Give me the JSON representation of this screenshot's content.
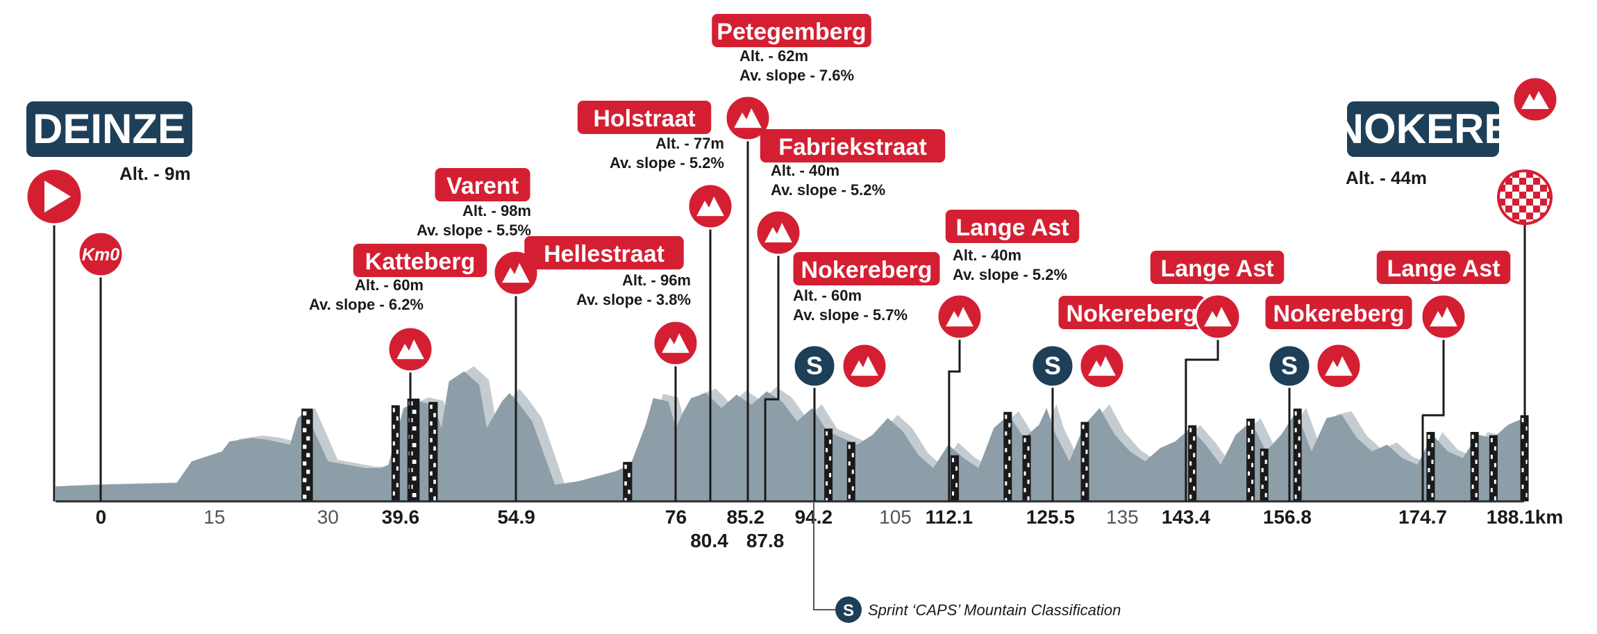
{
  "colors": {
    "red": "#d41f32",
    "navy": "#1e3f58",
    "profile_front": "#8d9ea8",
    "profile_back": "#c4ccd1",
    "text": "#1a1a1a",
    "tick_grey": "#555555"
  },
  "start": {
    "name": "DEINZE",
    "altitude": "Alt. - 9m",
    "icon": "start-flag-play-icon",
    "km0_label": "Km0"
  },
  "finish": {
    "name": "NOKERE",
    "altitude": "Alt. - 44m",
    "icon": "finish-checkered-flag-icon"
  },
  "climbs": [
    {
      "name": "Katteberg",
      "km": 39.6,
      "alt": "Alt. - 60m",
      "slope": "Av. slope - 6.2%"
    },
    {
      "name": "Varent",
      "km": 54.9,
      "alt": "Alt. - 98m",
      "slope": "Av. slope - 5.5%"
    },
    {
      "name": "Hellestraat",
      "km": 76,
      "alt": "Alt. - 96m",
      "slope": "Av. slope - 3.8%"
    },
    {
      "name": "Holstraat",
      "km": 80.4,
      "alt": "Alt. - 77m",
      "slope": "Av. slope - 5.2%"
    },
    {
      "name": "Petegemberg",
      "km": 85.2,
      "alt": "Alt. - 62m",
      "slope": "Av. slope - 7.6%"
    },
    {
      "name": "Fabriekstraat",
      "km": 87.8,
      "alt": "Alt. - 40m",
      "slope": "Av. slope - 5.2%"
    },
    {
      "name": "Nokereberg",
      "km": 94.2,
      "alt": "Alt. - 60m",
      "slope": "Av. slope - 5.7%",
      "sprint": true
    },
    {
      "name": "Lange Ast",
      "km": 112.1,
      "alt": "Alt. - 40m",
      "slope": "Av. slope - 5.2%"
    },
    {
      "name": "Nokereberg",
      "km": 125.5,
      "sprint": true
    },
    {
      "name": "Lange Ast",
      "km": 143.4
    },
    {
      "name": "Nokereberg",
      "km": 156.8,
      "sprint": true
    },
    {
      "name": "Lange Ast",
      "km": 174.7
    },
    {
      "name": "",
      "km": 188.1,
      "finish_climb": true
    }
  ],
  "sprint_marker": "S",
  "legend": {
    "text": "Sprint ‘CAPS’ Mountain Classification"
  },
  "chart_data": {
    "type": "area",
    "title": "",
    "xlabel": "km",
    "ylabel": "",
    "xlim": [
      -6,
      188.1
    ],
    "ticks": [
      {
        "km": 0,
        "label": "0",
        "bold": true
      },
      {
        "km": 15,
        "label": "15",
        "bold": false
      },
      {
        "km": 30,
        "label": "30",
        "bold": false
      },
      {
        "km": 39.6,
        "label": "39.6",
        "bold": true
      },
      {
        "km": 54.9,
        "label": "54.9",
        "bold": true
      },
      {
        "km": 76,
        "label": "76",
        "bold": true
      },
      {
        "km": 80.4,
        "label": "80.4",
        "bold": true,
        "row": 2
      },
      {
        "km": 85.2,
        "label": "85.2",
        "bold": true
      },
      {
        "km": 87.8,
        "label": "87.8",
        "bold": true,
        "row": 2
      },
      {
        "km": 94.2,
        "label": "94.2",
        "bold": true
      },
      {
        "km": 105,
        "label": "105",
        "bold": false
      },
      {
        "km": 112.1,
        "label": "112.1",
        "bold": true
      },
      {
        "km": 125.5,
        "label": "125.5",
        "bold": true
      },
      {
        "km": 135,
        "label": "135",
        "bold": false
      },
      {
        "km": 143.4,
        "label": "143.4",
        "bold": true
      },
      {
        "km": 156.8,
        "label": "156.8",
        "bold": true
      },
      {
        "km": 174.7,
        "label": "174.7",
        "bold": true
      },
      {
        "km": 188.1,
        "label": "188.1km",
        "bold": true
      }
    ],
    "series": [
      {
        "name": "elevation",
        "x": [
          -6,
          0,
          10,
          12,
          16,
          17,
          20,
          22,
          25,
          26,
          27,
          30,
          35,
          37,
          38,
          40,
          42,
          44,
          45,
          46,
          48,
          50,
          51,
          53,
          54,
          55,
          57,
          60,
          63,
          68,
          70,
          72,
          73,
          75,
          76,
          77,
          78,
          80,
          82,
          84,
          86,
          88,
          90,
          92,
          94,
          96,
          100,
          102,
          104,
          106,
          108,
          110,
          112,
          114,
          116,
          118,
          120,
          122,
          124,
          125,
          126,
          128,
          130,
          132,
          134,
          136,
          138,
          140,
          142,
          144,
          146,
          148,
          150,
          152,
          154,
          156,
          158,
          160,
          162,
          164,
          166,
          168,
          170,
          172,
          174,
          176,
          178,
          180,
          182,
          184,
          186,
          188.1
        ],
        "y": [
          9,
          10,
          11,
          24,
          30,
          36,
          38,
          37,
          34,
          50,
          54,
          24,
          20,
          20,
          22,
          56,
          60,
          58,
          44,
          72,
          78,
          70,
          44,
          60,
          65,
          60,
          48,
          10,
          12,
          18,
          22,
          46,
          62,
          60,
          44,
          54,
          62,
          65,
          56,
          64,
          58,
          66,
          60,
          48,
          56,
          42,
          34,
          40,
          50,
          42,
          28,
          20,
          34,
          26,
          20,
          44,
          52,
          38,
          46,
          56,
          42,
          24,
          46,
          56,
          40,
          30,
          24,
          32,
          36,
          44,
          34,
          22,
          40,
          48,
          30,
          40,
          54,
          30,
          50,
          52,
          38,
          30,
          34,
          26,
          22,
          40,
          30,
          26,
          40,
          38,
          46,
          50
        ]
      }
    ]
  }
}
